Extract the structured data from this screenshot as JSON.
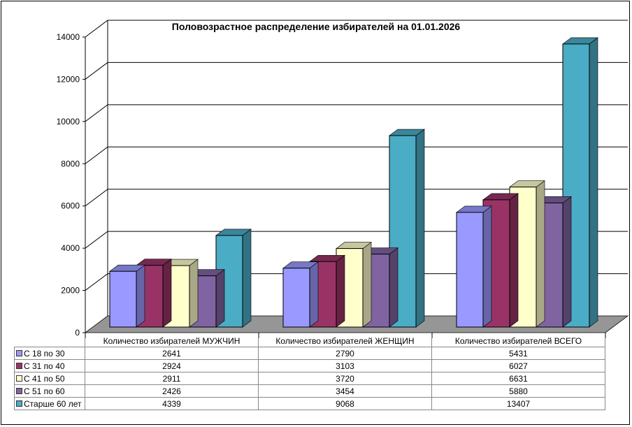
{
  "chart_data": {
    "type": "bar",
    "style": "3d-clustered-column",
    "title": "Половозрастное распределение избирателей на 01.01.2026",
    "xlabel": "",
    "ylabel": "",
    "ylim": [
      0,
      14000
    ],
    "yticks": [
      0,
      2000,
      4000,
      6000,
      8000,
      10000,
      12000,
      14000
    ],
    "grid": true,
    "legend": "in-data-table",
    "categories": [
      "Количество избирателей МУЖЧИН",
      "Количество избирателей ЖЕНЩИН",
      "Количество избирателей ВСЕГО"
    ],
    "series": [
      {
        "name": "С 18 по 30",
        "color": "#9999ff",
        "values": [
          2641,
          2790,
          5431
        ]
      },
      {
        "name": "С 31 по 40",
        "color": "#993366",
        "values": [
          2924,
          3103,
          6027
        ]
      },
      {
        "name": "С 41 по 50",
        "color": "#ffffcc",
        "values": [
          2911,
          3720,
          6631
        ]
      },
      {
        "name": "С 51 по 60",
        "color": "#8064a2",
        "values": [
          2426,
          3454,
          5880
        ]
      },
      {
        "name": "Старше 60 лет",
        "color": "#4bacc6",
        "values": [
          4339,
          9068,
          13407
        ]
      }
    ]
  }
}
